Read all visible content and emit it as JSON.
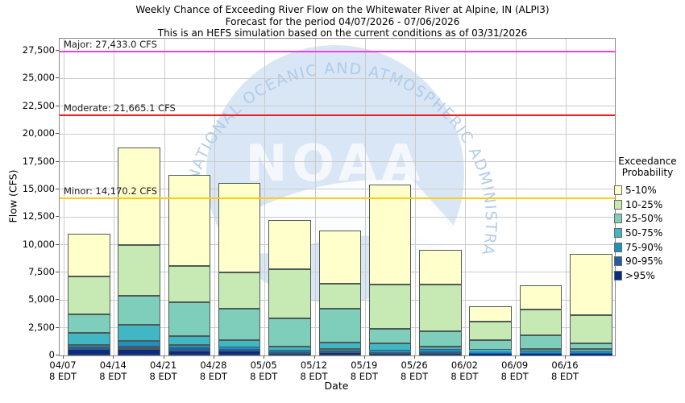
{
  "title": {
    "line1": "Weekly Chance of Exceeding River Flow on the Whitewater River at Alpine, IN (ALPI3)",
    "line2": "Forecast for the period 04/07/2026 - 07/06/2026",
    "line3": "This is an HEFS simulation based on the current conditions as of 03/31/2026"
  },
  "y_axis": {
    "label": "Flow (CFS)",
    "tick_labels": [
      "0",
      "2,500",
      "5,000",
      "7,500",
      "10,000",
      "12,500",
      "15,000",
      "17,500",
      "20,000",
      "22,500",
      "25,000",
      "27,500"
    ],
    "tick_values": [
      0,
      2500,
      5000,
      7500,
      10000,
      12500,
      15000,
      17500,
      20000,
      22500,
      25000,
      27500
    ]
  },
  "x_axis": {
    "label": "Date",
    "sub_label": "8 EDT"
  },
  "legend": {
    "title_line1": "Exceedance",
    "title_line2": "Probability",
    "entries": [
      {
        "label": "5-10%",
        "color": "#FFFFCC"
      },
      {
        "label": "10-25%",
        "color": "#C7E9B4"
      },
      {
        "label": "25-50%",
        "color": "#7FCDBB"
      },
      {
        "label": "50-75%",
        "color": "#41B6C4"
      },
      {
        "label": "75-90%",
        "color": "#1D91C0"
      },
      {
        "label": "90-95%",
        "color": "#225EA8"
      },
      {
        "label": ">95%",
        "color": "#0C2C84"
      }
    ]
  },
  "watermark": {
    "acronym": "NOAA",
    "ring_text": "NATIONAL OCEANIC AND ATMOSPHERIC ADMINISTRATION",
    "circle_color": "#CFE0F4",
    "text_color": "#AECBEA"
  },
  "chart_data": {
    "type": "bar",
    "stacked": true,
    "title": "Weekly Chance of Exceeding River Flow on the Whitewater River at Alpine, IN (ALPI3)",
    "xlabel": "Date",
    "ylabel": "Flow (CFS)",
    "ylim": [
      0,
      28600
    ],
    "ytick_interval": 2500,
    "grid": true,
    "legend_position": "right",
    "categories": [
      "04/07",
      "04/14",
      "04/21",
      "04/28",
      "05/05",
      "05/12",
      "05/19",
      "05/26",
      "06/02",
      "06/09",
      "06/16"
    ],
    "series": [
      {
        "name": ">95%",
        "color": "#0C2C84",
        "cumulative_top": [
          550,
          570,
          450,
          440,
          220,
          260,
          220,
          250,
          150,
          170,
          160
        ]
      },
      {
        "name": "90-95%",
        "color": "#225EA8",
        "cumulative_top": [
          730,
          800,
          630,
          550,
          330,
          380,
          310,
          350,
          230,
          250,
          240
        ]
      },
      {
        "name": "75-90%",
        "color": "#1D91C0",
        "cumulative_top": [
          950,
          1280,
          920,
          730,
          460,
          600,
          440,
          500,
          330,
          360,
          310
        ]
      },
      {
        "name": "50-75%",
        "color": "#41B6C4",
        "cumulative_top": [
          2050,
          2800,
          1780,
          1400,
          780,
          1150,
          1100,
          800,
          510,
          600,
          560
        ]
      },
      {
        "name": "25-50%",
        "color": "#7FCDBB",
        "cumulative_top": [
          3700,
          5350,
          4800,
          4200,
          3350,
          4250,
          2400,
          2150,
          1400,
          1820,
          1100
        ]
      },
      {
        "name": "10-25%",
        "color": "#C7E9B4",
        "cumulative_top": [
          7100,
          10000,
          8100,
          7500,
          7800,
          6450,
          6400,
          6400,
          3050,
          4150,
          3650
        ]
      },
      {
        "name": "5-10%",
        "color": "#FFFFCC",
        "cumulative_top": [
          11000,
          18800,
          16300,
          15600,
          12200,
          11300,
          15400,
          9500,
          4450,
          6350,
          9200
        ]
      }
    ],
    "thresholds": [
      {
        "name": "Major",
        "value": 27433.0,
        "label": "Major: 27,433.0 CFS",
        "color": "#F23CF2"
      },
      {
        "name": "Moderate",
        "value": 21665.1,
        "label": "Moderate: 21,665.1 CFS",
        "color": "#F01E1E"
      },
      {
        "name": "Minor",
        "value": 14170.2,
        "label": "Minor: 14,170.2 CFS",
        "color": "#FFCC11"
      }
    ]
  }
}
